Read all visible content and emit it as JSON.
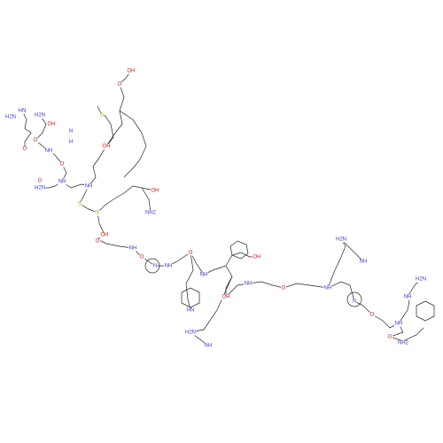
{
  "atom_labels": [
    "H2N",
    "OH",
    "HN",
    "H2N",
    "O",
    "NH",
    "O",
    "H",
    "N",
    "H2N",
    "O",
    "NH",
    "O",
    "OH",
    "S",
    "OH",
    "O",
    "NH",
    "S",
    "S",
    "OH",
    "NH2",
    "OH",
    "O",
    "NH",
    "N",
    "O",
    "NH",
    "O",
    "NH",
    "HN",
    "OH",
    "OH",
    "NH",
    "H2N",
    "NH",
    "O",
    "NH",
    "H2N",
    "NH",
    "N",
    "O",
    "H2N",
    "NH",
    "NH2",
    "O",
    "NH"
  ]
}
